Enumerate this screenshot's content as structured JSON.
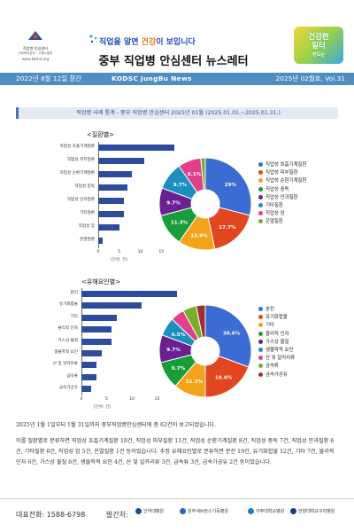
{
  "header": {
    "logo_name": "직업병 안심센터",
    "logo_sub": "근로복지공단 · 고용노동부",
    "logo_url": "www.kosha.org",
    "slogan_part1": "직업을 알면 ",
    "slogan_accent": "건강",
    "slogan_part2": "이 보입니다",
    "title": "중부 직업병 안심센터 뉴스레터",
    "badge_line1": "건강한",
    "badge_line2": "일터",
    "badge_line3": "만드는"
  },
  "banner": {
    "founded": "2022년 8월 12일 창간",
    "center": "KODSC JungBu News",
    "issue": "2025년 02월호, Vol.31"
  },
  "section_title": "직업병 사례 통계 - 중부 직업병 안심센터  2025년 01월 (2025.01.01.~2025.01.31.)",
  "colors": {
    "bar": "#2e4c9d",
    "banner": "#4f8dc2"
  },
  "chart_data": [
    {
      "type": "bar",
      "title": "<질환별>",
      "categories": [
        "직업성 호흡기계질환",
        "직업성 피부질환",
        "직업성 순환기계질환",
        "직업성 중독",
        "직업성 안과질환",
        "기타질환",
        "직업성 암",
        "온열질환"
      ],
      "values": [
        18,
        11,
        8,
        7,
        6,
        6,
        5,
        1
      ],
      "xlabel": "[단위: 건]",
      "xticks": [
        "0",
        "5",
        "10",
        "15"
      ],
      "xlim": [
        0,
        20
      ]
    },
    {
      "type": "pie",
      "labels": [
        "직업성 호흡기계질환",
        "직업성 피부질환",
        "직업성 순환기계질환",
        "직업성 중독",
        "직업성 안과질환",
        "기타질환",
        "직업성 암",
        "온열질환"
      ],
      "values": [
        29,
        17.7,
        12.9,
        11.3,
        9.7,
        9.7,
        8.1,
        1.6
      ],
      "slice_labels": [
        "29%",
        "17.7%",
        "12.9%",
        "11.3%",
        "9.7%",
        "9.7%",
        "8.1%",
        ""
      ],
      "colors": [
        "#3b6cd4",
        "#e2461e",
        "#f3a21a",
        "#199d3a",
        "#6b1f92",
        "#1b8fbf",
        "#e0408a",
        "#7aad2a"
      ],
      "legend_position": "right"
    },
    {
      "type": "bar",
      "title": "<유해요인별>",
      "categories": [
        "분진",
        "유기화합물",
        "기타",
        "물리적 인자",
        "가스상 물질",
        "생물학적 요인",
        "산 및 알카리류",
        "금속류",
        "금속가공유"
      ],
      "values": [
        19,
        12,
        7,
        6,
        6,
        4,
        3,
        3,
        2
      ],
      "xlabel": "[단위: 건]",
      "xticks": [
        "0",
        "5",
        "10",
        "15"
      ],
      "xlim": [
        0,
        20
      ]
    },
    {
      "type": "pie",
      "labels": [
        "분진",
        "유기화합물",
        "기타",
        "물리적 인자",
        "가스상 물질",
        "생물학적 요인",
        "산 및 알카리류",
        "금속류",
        "금속가공유"
      ],
      "values": [
        30.6,
        19.4,
        11.3,
        9.7,
        9.7,
        6.5,
        4.8,
        4.8,
        3.2
      ],
      "slice_labels": [
        "30.6%",
        "19.4%",
        "11.3%",
        "9.7%",
        "9.7%",
        "6.5%",
        "",
        "",
        ""
      ],
      "colors": [
        "#3b6cd4",
        "#e2461e",
        "#f3a21a",
        "#199d3a",
        "#6b1f92",
        "#1b8fbf",
        "#e0408a",
        "#7aad2a",
        "#a22f2f"
      ],
      "legend_position": "right"
    }
  ],
  "body": {
    "p1": "2025년 1월 1일부터 1월 31일까지 중부직업병안심센터에 총 62건이 보고되었습니다.",
    "p2": "이를 질환별로 분류하면 직업성 호흡기계질환 18건, 직업성 피부질환 11건, 직업성 순환기계질환 8건, 직업성 중독 7건, 직업성 안과질환 6건, 기타질환 6건, 직업성 암 5건, 온열질환 1건 등이었습니다. 추정 유해요인별로 분류하면 분진 19건, 유기화합물 12건, 기타 7건, 물리적 인자 6건, 가스상 물질 6건, 생물학적 요인 4건, 산 및 알카리류 3건, 금속류 3건, 금속가공유 2건 등이었습니다."
  },
  "footer": {
    "contact_label": "대표전화:  1588-6798",
    "publisher_label": "발간처:",
    "orgs": [
      "인하대병원",
      "원주세브란스기독병원",
      "아주대학교병원",
      "한양대학교구리병원"
    ]
  }
}
